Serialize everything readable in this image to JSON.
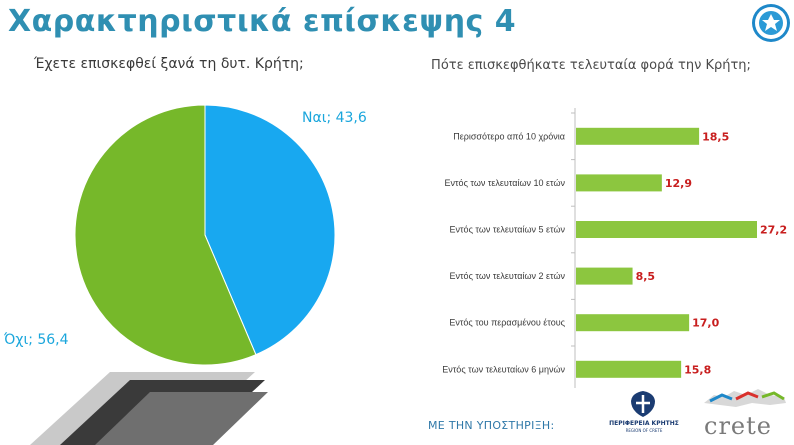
{
  "slide": {
    "title": "Χαρακτηριστικά επίσκεψης 4",
    "support_label": "ΜΕ ΤΗΝ ΥΠΟΣΤΗΡΙΞΗ:",
    "region_logo_text": "ΠΕΡΙΦΕΡΕΙΑ ΚΡΗΤΗΣ",
    "region_logo_subtext": "REGION OF CRETE",
    "crete_logo_text": "crete"
  },
  "colors": {
    "title": "#2f8fb2",
    "pie_yes": "#18a8f0",
    "pie_no": "#76b82a",
    "bar": "#8cc63f",
    "value_text": "#c81e1e"
  },
  "chart_data": [
    {
      "type": "pie",
      "title": "Έχετε επισκεφθεί ξανά τη δυτ. Κρήτη;",
      "slices": [
        {
          "name": "Ναι",
          "value": 43.6,
          "label": "Ναι; 43,6",
          "color": "#18a8f0"
        },
        {
          "name": "Όχι",
          "value": 56.4,
          "label": "Όχι; 56,4",
          "color": "#76b82a"
        }
      ]
    },
    {
      "type": "bar",
      "orientation": "horizontal",
      "title": "Πότε επισκεφθήκατε τελευταία φορά την Κρήτη;",
      "categories": [
        "Περισσότερο από 10 χρόνια",
        "Εντός των τελευταίων 10 ετών",
        "Εντός των τελευταίων 5 ετών",
        "Εντός των τελευταίων 2 ετών",
        "Εντός του περασμένου έτους",
        "Εντός των τελευταίων 6 μηνών"
      ],
      "values": [
        18.5,
        12.9,
        27.2,
        8.5,
        17.0,
        15.8
      ],
      "value_labels": [
        "18,5",
        "12,9",
        "27,2",
        "8,5",
        "17,0",
        "15,8"
      ],
      "xlim": [
        0,
        27.2
      ]
    }
  ]
}
